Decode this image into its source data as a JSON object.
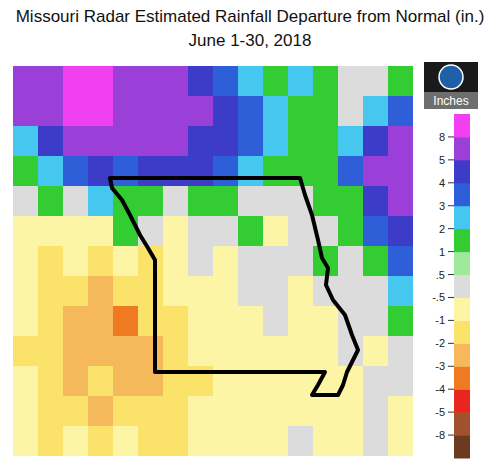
{
  "chart_data": {
    "type": "heatmap",
    "title": "Missouri Radar Estimated Rainfall Departure from Normal (in.)",
    "subtitle": "June 1-30, 2018",
    "tick_labels": false,
    "cells": [
      [
        5,
        6,
        8,
        9,
        6,
        5,
        5,
        4,
        3,
        2,
        1,
        2,
        1,
        0,
        0,
        1
      ],
      [
        5,
        5,
        8,
        8,
        6,
        5,
        5,
        5,
        4,
        3,
        2,
        1,
        1,
        0,
        2,
        3
      ],
      [
        2,
        4,
        5,
        6,
        5,
        5,
        5,
        4,
        4,
        3,
        2,
        1,
        1,
        2,
        4,
        5
      ],
      [
        1,
        2,
        3,
        4,
        3,
        4,
        4,
        4,
        3,
        2,
        1,
        1,
        1,
        3,
        5,
        5
      ],
      [
        0,
        1,
        0,
        2,
        1,
        1,
        0.3,
        1,
        1,
        0,
        0,
        0,
        1,
        1,
        4,
        5
      ],
      [
        -1,
        -1,
        -1,
        -1,
        1,
        0,
        -1,
        0,
        0,
        1,
        -0.7,
        0,
        0,
        1,
        3,
        4
      ],
      [
        -1,
        -2,
        -1,
        -2,
        -1,
        -2,
        -1,
        0,
        -1,
        0,
        0,
        0,
        1,
        0,
        1,
        3
      ],
      [
        -1,
        -2,
        -2,
        -3,
        -2,
        -2,
        -1,
        -1,
        -1,
        0,
        0,
        -1,
        0,
        0,
        0,
        2
      ],
      [
        -1,
        -2,
        -3,
        -3,
        -4,
        -2,
        -2,
        -1,
        -1,
        -1,
        0,
        -1,
        -1,
        0,
        0,
        1
      ],
      [
        -2,
        -2,
        -3,
        -3,
        -3,
        -3,
        -2,
        -1,
        -1,
        -1,
        -1,
        -0.7,
        -1,
        0,
        -1,
        0
      ],
      [
        -1,
        -2,
        -3,
        -2,
        -3,
        -3,
        -2,
        -2,
        -1,
        -1,
        -1,
        -1,
        -0.7,
        -1,
        0,
        0
      ],
      [
        -1,
        -2,
        -2,
        -3,
        -2,
        -2,
        -2,
        -1,
        -1,
        -1,
        -1,
        -1,
        -1,
        -0.7,
        0,
        -1
      ],
      [
        -1,
        -2,
        -1,
        -2,
        -1,
        -2,
        -2,
        -1,
        -1,
        -1,
        -1,
        0,
        -1,
        -1,
        0,
        -1
      ]
    ],
    "colorbar": {
      "label": "Inches",
      "ticks": [
        -8,
        -5,
        -4,
        -3,
        -2,
        -1,
        {
          "value": -0.5,
          "label": "-.5"
        },
        {
          "value": 0.5,
          "label": ".5"
        },
        1,
        2,
        3,
        4,
        5,
        8
      ],
      "colors": [
        "#6b3a1f",
        "#a0522d",
        "#e8251e",
        "#f07a22",
        "#f5b85a",
        "#fbe26a",
        "#fdf5a6",
        "#dcdcdc",
        "#9ee89a",
        "#33cc33",
        "#46c7f0",
        "#2f5fd8",
        "#3c3cc8",
        "#9a3fd8",
        "#f040f0"
      ]
    }
  }
}
